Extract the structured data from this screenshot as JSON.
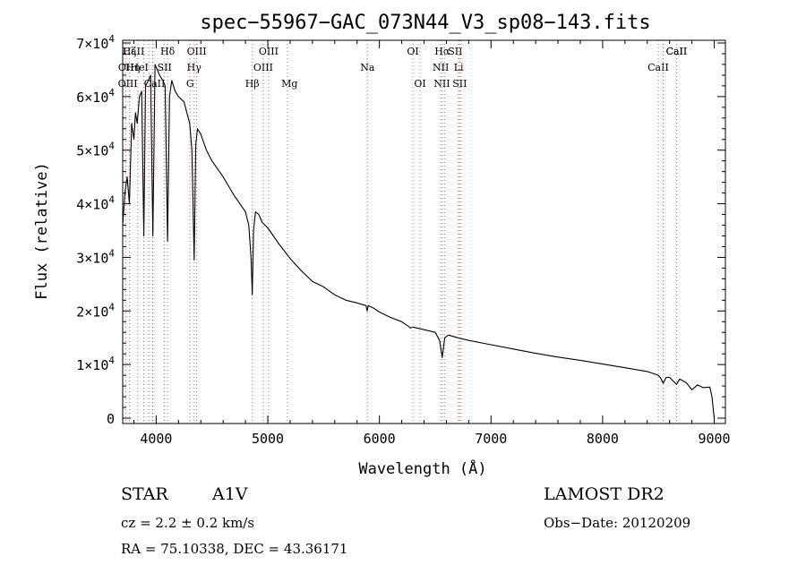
{
  "chart_data": {
    "type": "line",
    "title": "spec−55967−GAC_073N44_V3_sp08−143.fits",
    "xlabel": "Wavelength (Å)",
    "ylabel": "Flux (relative)",
    "xlim": [
      3700,
      9100
    ],
    "ylim": [
      -1000,
      70500
    ],
    "x_ticks": [
      4000,
      5000,
      6000,
      7000,
      8000,
      9000
    ],
    "y_ticks": [
      {
        "value": 0,
        "mantissa": "0",
        "exponent": ""
      },
      {
        "value": 10000,
        "mantissa": "1×10",
        "exponent": "4"
      },
      {
        "value": 20000,
        "mantissa": "2×10",
        "exponent": "4"
      },
      {
        "value": 30000,
        "mantissa": "3×10",
        "exponent": "4"
      },
      {
        "value": 40000,
        "mantissa": "4×10",
        "exponent": "4"
      },
      {
        "value": 50000,
        "mantissa": "5×10",
        "exponent": "4"
      },
      {
        "value": 60000,
        "mantissa": "6×10",
        "exponent": "4"
      },
      {
        "value": 70000,
        "mantissa": "7×10",
        "exponent": "4"
      }
    ],
    "series": [
      {
        "name": "spectrum",
        "x": [
          3700,
          3720,
          3740,
          3760,
          3780,
          3800,
          3815,
          3830,
          3850,
          3870,
          3889,
          3905,
          3930,
          3950,
          3970,
          3990,
          4010,
          4030,
          4060,
          4080,
          4102,
          4120,
          4140,
          4170,
          4200,
          4250,
          4300,
          4320,
          4340,
          4355,
          4370,
          4400,
          4450,
          4500,
          4600,
          4700,
          4750,
          4800,
          4830,
          4850,
          4861,
          4872,
          4890,
          4920,
          4950,
          5000,
          5100,
          5200,
          5300,
          5400,
          5500,
          5600,
          5700,
          5800,
          5880,
          5890,
          5900,
          5950,
          6000,
          6100,
          6200,
          6270,
          6280,
          6300,
          6400,
          6500,
          6540,
          6563,
          6585,
          6620,
          6700,
          6800,
          7000,
          7200,
          7400,
          7600,
          7800,
          8000,
          8200,
          8400,
          8498,
          8520,
          8542,
          8570,
          8600,
          8662,
          8690,
          8750,
          8800,
          8850,
          8900,
          8960,
          8980,
          9000
        ],
        "y": [
          36000,
          42000,
          45000,
          40000,
          55000,
          52000,
          57000,
          55000,
          60000,
          61000,
          34000,
          62000,
          63000,
          64000,
          34000,
          66000,
          65000,
          64000,
          63000,
          62000,
          33000,
          60000,
          63000,
          61000,
          60000,
          59000,
          55000,
          50000,
          29500,
          51000,
          54000,
          53000,
          50000,
          48000,
          45000,
          41500,
          40000,
          38500,
          36000,
          30000,
          23000,
          35000,
          38500,
          38000,
          36500,
          35500,
          32500,
          29800,
          27500,
          25500,
          24500,
          23000,
          22000,
          21500,
          21000,
          20000,
          21000,
          20500,
          19800,
          18800,
          18000,
          17000,
          16800,
          17000,
          16500,
          16000,
          14500,
          11300,
          15000,
          15500,
          15000,
          14500,
          13700,
          12900,
          12100,
          11400,
          10800,
          10100,
          9400,
          8700,
          8000,
          7500,
          6500,
          7600,
          7600,
          6300,
          7300,
          6600,
          5300,
          6200,
          5700,
          5800,
          4000,
          0
        ]
      }
    ],
    "line_markers": [
      {
        "name": "Hα",
        "wavelength": 6563,
        "row": 1,
        "label_x": 6563
      },
      {
        "name": "SII",
        "wavelength": 6717,
        "row": 1,
        "label_x": 6680
      },
      {
        "name": "OI",
        "wavelength": 6300,
        "row": 1,
        "label_x": 6300
      },
      {
        "name": "NII",
        "wavelength": 6583,
        "row": 2,
        "label_x": 6550
      },
      {
        "name": "Li",
        "wavelength": 6708,
        "row": 2,
        "label_x": 6710
      },
      {
        "name": "OI",
        "wavelength": 6364,
        "row": 3,
        "label_x": 6364
      },
      {
        "name": "NII",
        "wavelength": 6548,
        "row": 3,
        "label_x": 6560
      },
      {
        "name": "SII",
        "wavelength": 6731,
        "row": 3,
        "label_x": 6720
      },
      {
        "name": "Na",
        "wavelength": 5893,
        "row": 2,
        "label_x": 5893
      },
      {
        "name": "Mg",
        "wavelength": 5175,
        "row": 3,
        "label_x": 5195
      },
      {
        "name": "OIII",
        "wavelength": 5007,
        "row": 1,
        "label_x": 5007
      },
      {
        "name": "OIII",
        "wavelength": 4959,
        "row": 2,
        "label_x": 4959
      },
      {
        "name": "Hβ",
        "wavelength": 4861,
        "row": 3,
        "label_x": 4861
      },
      {
        "name": "OIII",
        "wavelength": 4363,
        "row": 1,
        "label_x": 4363
      },
      {
        "name": "Hγ",
        "wavelength": 4340,
        "row": 2,
        "label_x": 4340
      },
      {
        "name": "G",
        "wavelength": 4304,
        "row": 3,
        "label_x": 4304
      },
      {
        "name": "Hδ",
        "wavelength": 4102,
        "row": 1,
        "label_x": 4102
      },
      {
        "name": "SII",
        "wavelength": 4072,
        "row": 2,
        "label_x": 4075
      },
      {
        "name": "CaII",
        "wavelength": 3969,
        "row": 3,
        "label_x": 3985
      },
      {
        "name": "Hζ",
        "wavelength": 3889,
        "row": 1,
        "label_x": 3760
      },
      {
        "name": "CaII",
        "wavelength": 3934,
        "row": 1,
        "label_x": 3800
      },
      {
        "name": "OII",
        "wavelength": 3727,
        "row": 2,
        "label_x": 3730
      },
      {
        "name": "Hη",
        "wavelength": 3835,
        "row": 2,
        "label_x": 3790
      },
      {
        "name": "HeI",
        "wavelength": 3889,
        "row": 2,
        "label_x": 3850
      },
      {
        "name": "OIII",
        "wavelength": 3760,
        "row": 3,
        "label_x": 3745
      },
      {
        "name": "CaII",
        "wavelength": 8498,
        "row": 2,
        "label_x": 8498
      },
      {
        "name": "CaII",
        "wavelength": 8542,
        "row": 1,
        "label_x": 8662
      },
      {
        "name": "CaII",
        "wavelength": 8662,
        "row": 1,
        "label_x": 8662
      }
    ]
  },
  "info": {
    "object_class": "STAR",
    "subclass": "A1V",
    "survey": "LAMOST DR2",
    "cz_text": "cz = 2.2 ± 0.2 km/s",
    "obs_date_text": "Obs−Date: 20120209",
    "coords_text": "RA =  75.10338, DEC =  43.36171"
  }
}
